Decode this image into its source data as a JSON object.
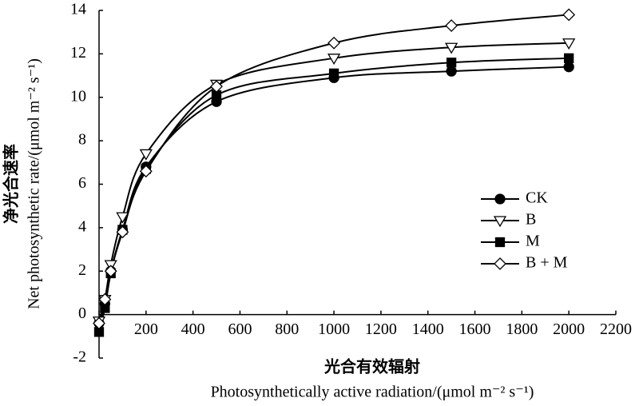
{
  "chart_data": {
    "type": "scatter",
    "y_label_cn": "净光合速率",
    "y_label": "Net photosynthetic rate/(μmol m⁻² s⁻¹)",
    "x_label_cn": "光合有效辐射",
    "x_label": "Photosynthetically active radiation/(μmol m⁻² s⁻¹)",
    "x": [
      0,
      25,
      50,
      100,
      200,
      500,
      1000,
      1500,
      2000
    ],
    "series": [
      {
        "name": "CK",
        "color": "#000000",
        "marker": "circle",
        "fill": "#000000",
        "values": [
          -0.4,
          0.5,
          2.0,
          3.9,
          6.8,
          9.8,
          10.9,
          11.2,
          11.4
        ]
      },
      {
        "name": "B",
        "color": "#000000",
        "marker": "triangle-down",
        "fill": "#ffffff",
        "values": [
          -0.3,
          0.7,
          2.3,
          4.5,
          7.4,
          10.6,
          11.8,
          12.3,
          12.5
        ]
      },
      {
        "name": "M",
        "color": "#000000",
        "marker": "square",
        "fill": "#000000",
        "values": [
          -0.8,
          0.3,
          1.9,
          3.9,
          6.7,
          10.1,
          11.1,
          11.6,
          11.8
        ]
      },
      {
        "name": "B + M",
        "color": "#000000",
        "marker": "diamond",
        "fill": "#ffffff",
        "values": [
          -0.4,
          0.7,
          2.0,
          3.8,
          6.6,
          10.5,
          12.5,
          13.3,
          13.8
        ]
      }
    ],
    "xlim": [
      0,
      2200
    ],
    "xticks": [
      0,
      200,
      400,
      600,
      800,
      1000,
      1200,
      1400,
      1600,
      1800,
      2000,
      2200
    ],
    "ylim": [
      -2,
      14
    ],
    "yticks": [
      -2,
      0,
      2,
      4,
      6,
      8,
      10,
      12,
      14
    ],
    "grid": false,
    "legend": "right"
  }
}
